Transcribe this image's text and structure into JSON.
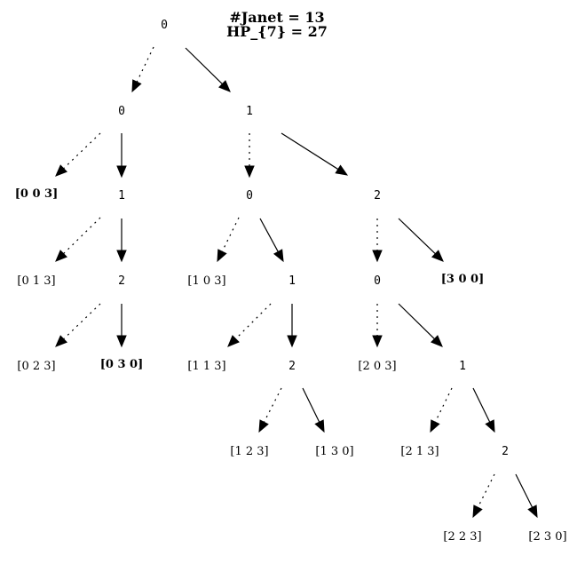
{
  "title_lines": [
    "#Janet = 13",
    "HP_{7} = 27"
  ],
  "nodes": [
    {
      "id": "n0",
      "label": "0",
      "bold": false,
      "leaf": false
    },
    {
      "id": "n1",
      "label": "0",
      "bold": false,
      "leaf": false
    },
    {
      "id": "n2",
      "label": "1",
      "bold": false,
      "leaf": false
    },
    {
      "id": "n3",
      "label": "[0 0 3]",
      "bold": true,
      "leaf": true
    },
    {
      "id": "n4",
      "label": "1",
      "bold": false,
      "leaf": false
    },
    {
      "id": "n5",
      "label": "0",
      "bold": false,
      "leaf": false
    },
    {
      "id": "n6",
      "label": "2",
      "bold": false,
      "leaf": false
    },
    {
      "id": "n7",
      "label": "[0 1 3]",
      "bold": false,
      "leaf": true
    },
    {
      "id": "n8",
      "label": "2",
      "bold": false,
      "leaf": false
    },
    {
      "id": "n9",
      "label": "[1 0 3]",
      "bold": false,
      "leaf": true
    },
    {
      "id": "n10",
      "label": "1",
      "bold": false,
      "leaf": false
    },
    {
      "id": "n11",
      "label": "0",
      "bold": false,
      "leaf": false
    },
    {
      "id": "n12",
      "label": "[3 0 0]",
      "bold": true,
      "leaf": true
    },
    {
      "id": "n13",
      "label": "[0 2 3]",
      "bold": false,
      "leaf": true
    },
    {
      "id": "n14",
      "label": "[0 3 0]",
      "bold": true,
      "leaf": true
    },
    {
      "id": "n15",
      "label": "[1 1 3]",
      "bold": false,
      "leaf": true
    },
    {
      "id": "n16",
      "label": "2",
      "bold": false,
      "leaf": false
    },
    {
      "id": "n17",
      "label": "[2 0 3]",
      "bold": false,
      "leaf": true
    },
    {
      "id": "n18",
      "label": "1",
      "bold": false,
      "leaf": false
    },
    {
      "id": "n19",
      "label": "[1 2 3]",
      "bold": false,
      "leaf": true
    },
    {
      "id": "n20",
      "label": "[1 3 0]",
      "bold": false,
      "leaf": true
    },
    {
      "id": "n21",
      "label": "[2 1 3]",
      "bold": false,
      "leaf": true
    },
    {
      "id": "n22",
      "label": "2",
      "bold": false,
      "leaf": false
    },
    {
      "id": "n23",
      "label": "[2 2 3]",
      "bold": false,
      "leaf": true
    },
    {
      "id": "n24",
      "label": "[2 3 0]",
      "bold": false,
      "leaf": true
    }
  ],
  "edges": [
    {
      "from": "n0",
      "to": "n1",
      "style": "dotted"
    },
    {
      "from": "n0",
      "to": "n2",
      "style": "solid"
    },
    {
      "from": "n1",
      "to": "n3",
      "style": "dotted"
    },
    {
      "from": "n1",
      "to": "n4",
      "style": "solid"
    },
    {
      "from": "n2",
      "to": "n5",
      "style": "dotted"
    },
    {
      "from": "n2",
      "to": "n6",
      "style": "solid"
    },
    {
      "from": "n4",
      "to": "n7",
      "style": "dotted"
    },
    {
      "from": "n4",
      "to": "n8",
      "style": "solid"
    },
    {
      "from": "n5",
      "to": "n9",
      "style": "dotted"
    },
    {
      "from": "n5",
      "to": "n10",
      "style": "solid"
    },
    {
      "from": "n6",
      "to": "n11",
      "style": "dotted"
    },
    {
      "from": "n6",
      "to": "n12",
      "style": "solid"
    },
    {
      "from": "n8",
      "to": "n13",
      "style": "dotted"
    },
    {
      "from": "n8",
      "to": "n14",
      "style": "solid"
    },
    {
      "from": "n10",
      "to": "n15",
      "style": "dotted"
    },
    {
      "from": "n10",
      "to": "n16",
      "style": "solid"
    },
    {
      "from": "n11",
      "to": "n17",
      "style": "dotted"
    },
    {
      "from": "n11",
      "to": "n18",
      "style": "solid"
    },
    {
      "from": "n16",
      "to": "n19",
      "style": "dotted"
    },
    {
      "from": "n16",
      "to": "n20",
      "style": "solid"
    },
    {
      "from": "n18",
      "to": "n21",
      "style": "dotted"
    },
    {
      "from": "n18",
      "to": "n22",
      "style": "solid"
    },
    {
      "from": "n22",
      "to": "n23",
      "style": "dotted"
    },
    {
      "from": "n22",
      "to": "n24",
      "style": "solid"
    }
  ]
}
